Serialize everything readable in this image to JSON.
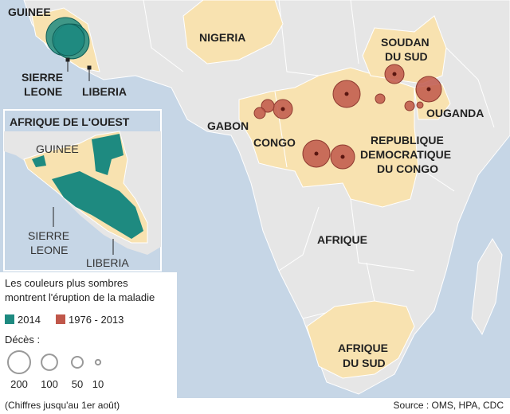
{
  "main_map": {
    "labels": {
      "guinee": "GUINEE",
      "sierre_leone": [
        "SIERRE",
        "LEONE"
      ],
      "liberia": "LIBERIA",
      "nigeria": "NIGERIA",
      "soudan_du_sud": [
        "SOUDAN",
        "DU SUD"
      ],
      "gabon": "GABON",
      "congo": "CONGO",
      "ouganda": "OUGANDA",
      "rdc": [
        "REPUBLIQUE",
        "DEMOCRATIQUE",
        "DU CONGO"
      ],
      "afrique": "AFRIQUE",
      "afrique_du_sud": [
        "AFRIQUE",
        "DU SUD"
      ]
    },
    "series": [
      {
        "name": "2014",
        "color": "#1e8a80",
        "deaths": [
          590,
          490,
          410
        ]
      },
      {
        "name": "1976 - 2013",
        "color": "#c0574a",
        "deaths": [
          295,
          295,
          230,
          260,
          147,
          147,
          65,
          50,
          37,
          37,
          16
        ]
      }
    ]
  },
  "inset": {
    "title": "AFRIQUE DE L'OUEST",
    "labels": {
      "guinee": "GUINEE",
      "sierre_leone": [
        "SIERRE",
        "LEONE"
      ],
      "liberia": "LIBERIA"
    }
  },
  "legend": {
    "note": [
      "Les couleurs plus sombres",
      "montrent l'éruption de la maladie"
    ],
    "deaths_title": "Décès :",
    "sizes": [
      200,
      100,
      50,
      10
    ]
  },
  "footer": {
    "note": "(Chiffres jusqu'au 1er août)",
    "source": "Source : OMS, HPA, CDC"
  }
}
